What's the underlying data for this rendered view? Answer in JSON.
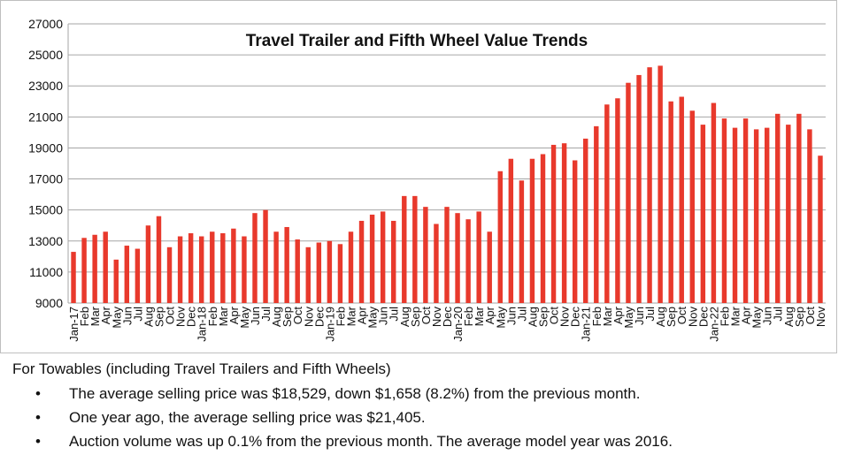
{
  "chart_data": {
    "type": "bar",
    "title": "Travel Trailer and Fifth Wheel Value Trends",
    "xlabel": "",
    "ylabel": "",
    "ylim": [
      9000,
      27000
    ],
    "yticks": [
      9000,
      11000,
      13000,
      15000,
      17000,
      19000,
      21000,
      23000,
      25000,
      27000
    ],
    "grid": true,
    "bar_color": "#e8392c",
    "categories": [
      "Jan-17",
      "Feb",
      "Mar",
      "Apr",
      "May",
      "Jun",
      "Jul",
      "Aug",
      "Sep",
      "Oct",
      "Nov",
      "Dec",
      "Jan-18",
      "Feb",
      "Mar",
      "Apr",
      "May",
      "Jun",
      "Jul",
      "Aug",
      "Sep",
      "Oct",
      "Nov",
      "Dec",
      "Jan-19",
      "Feb",
      "Mar",
      "Apr",
      "May",
      "Jun",
      "Jul",
      "Aug",
      "Sep",
      "Oct",
      "Nov",
      "Dec",
      "Jan-20",
      "Feb",
      "Mar",
      "Apr",
      "May",
      "Jun",
      "Jul",
      "Aug",
      "Sep",
      "Oct",
      "Nov",
      "Dec",
      "Jan-21",
      "Feb",
      "Mar",
      "Apr",
      "May",
      "Jun",
      "Jul",
      "Aug",
      "Sep",
      "Oct",
      "Nov",
      "Dec",
      "Jan-22",
      "Feb",
      "Mar",
      "Apr",
      "May",
      "Jun",
      "Jul",
      "Aug",
      "Sep",
      "Oct",
      "Nov"
    ],
    "values": [
      12300,
      13200,
      13400,
      13600,
      11800,
      12700,
      12500,
      14000,
      14600,
      12600,
      13300,
      13500,
      13300,
      13600,
      13500,
      13800,
      13300,
      14800,
      15000,
      13600,
      13900,
      13100,
      12600,
      12900,
      13000,
      12800,
      13600,
      14300,
      14700,
      14900,
      14300,
      15900,
      15900,
      15200,
      14100,
      15200,
      14800,
      14400,
      14900,
      13600,
      17500,
      18300,
      16900,
      18300,
      18600,
      19200,
      19300,
      18200,
      19600,
      20400,
      21800,
      22200,
      23200,
      23700,
      24200,
      24300,
      22000,
      22300,
      21400,
      20500,
      21900,
      20900,
      20300,
      20900,
      20200,
      20300,
      21200,
      20500,
      21200,
      20200,
      18500
    ]
  },
  "text": {
    "caption": "For Towables (including Travel Trailers and Fifth Wheels)",
    "bullets": [
      "The average selling price was $18,529, down $1,658 (8.2%) from the previous month.",
      "One year ago, the average selling price was $21,405.",
      "Auction volume was up 0.1% from the previous month.  The average model year was 2016."
    ]
  }
}
